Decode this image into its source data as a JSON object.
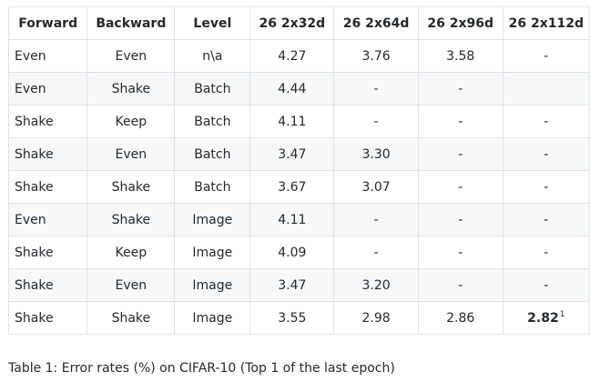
{
  "table": {
    "headers": [
      "Forward",
      "Backward",
      "Level",
      "26 2x32d",
      "26 2x64d",
      "26 2x96d",
      "26 2x112d"
    ],
    "rows": [
      [
        "Even",
        "Even",
        "n\\a",
        "4.27",
        "3.76",
        "3.58",
        "-"
      ],
      [
        "Even",
        "Shake",
        "Batch",
        "4.44",
        "-",
        "-",
        ""
      ],
      [
        "Shake",
        "Keep",
        "Batch",
        "4.11",
        "-",
        "-",
        "-"
      ],
      [
        "Shake",
        "Even",
        "Batch",
        "3.47",
        "3.30",
        "-",
        "-"
      ],
      [
        "Shake",
        "Shake",
        "Batch",
        "3.67",
        "3.07",
        "-",
        "-"
      ],
      [
        "Even",
        "Shake",
        "Image",
        "4.11",
        "-",
        "-",
        "-"
      ],
      [
        "Shake",
        "Keep",
        "Image",
        "4.09",
        "-",
        "-",
        "-"
      ],
      [
        "Shake",
        "Even",
        "Image",
        "3.47",
        "3.20",
        "-",
        "-"
      ],
      [
        "Shake",
        "Shake",
        "Image",
        "3.55",
        "2.98",
        "2.86",
        "2.82"
      ]
    ],
    "last_cell_footnote": "1"
  },
  "caption": "Table 1: Error rates (%) on CIFAR-10 (Top 1 of the last epoch)"
}
